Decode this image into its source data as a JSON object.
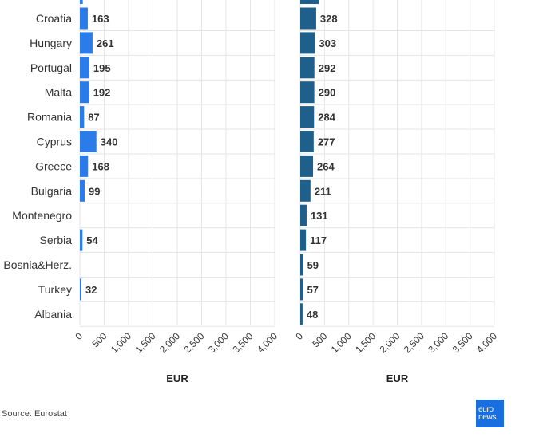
{
  "source": "Source: Eurostat",
  "logo": {
    "line1": "euro",
    "line2": "news."
  },
  "colors": {
    "left": "#2b7be8",
    "right": "#1f5f8b",
    "grid": "#e6e6e6"
  },
  "chart_data": [
    {
      "type": "bar",
      "orientation": "horizontal",
      "categories": [
        "Croatia",
        "Hungary",
        "Portugal",
        "Malta",
        "Romania",
        "Cyprus",
        "Greece",
        "Bulgaria",
        "Montenegro",
        "Serbia",
        "Bosnia&Herz.",
        "Turkey",
        "Albania"
      ],
      "values": [
        163,
        261,
        195,
        192,
        87,
        340,
        168,
        99,
        null,
        54,
        null,
        32,
        null
      ],
      "xlabel": "EUR",
      "xticks": [
        "0",
        "500",
        "1,000",
        "1,500",
        "2,000",
        "2,500",
        "3,000",
        "3,500",
        "4,000"
      ],
      "xlim": [
        0,
        4000
      ],
      "grid": true
    },
    {
      "type": "bar",
      "orientation": "horizontal",
      "categories": [
        "Croatia",
        "Hungary",
        "Portugal",
        "Malta",
        "Romania",
        "Cyprus",
        "Greece",
        "Bulgaria",
        "Montenegro",
        "Serbia",
        "Bosnia&Herz.",
        "Turkey",
        "Albania"
      ],
      "values": [
        328,
        303,
        292,
        290,
        284,
        277,
        264,
        211,
        131,
        117,
        59,
        57,
        48
      ],
      "xlabel": "EUR",
      "xticks": [
        "0",
        "500",
        "1,000",
        "1,500",
        "2,000",
        "2,500",
        "3,000",
        "3,500",
        "4,000"
      ],
      "xlim": [
        0,
        4000
      ],
      "grid": true
    }
  ]
}
